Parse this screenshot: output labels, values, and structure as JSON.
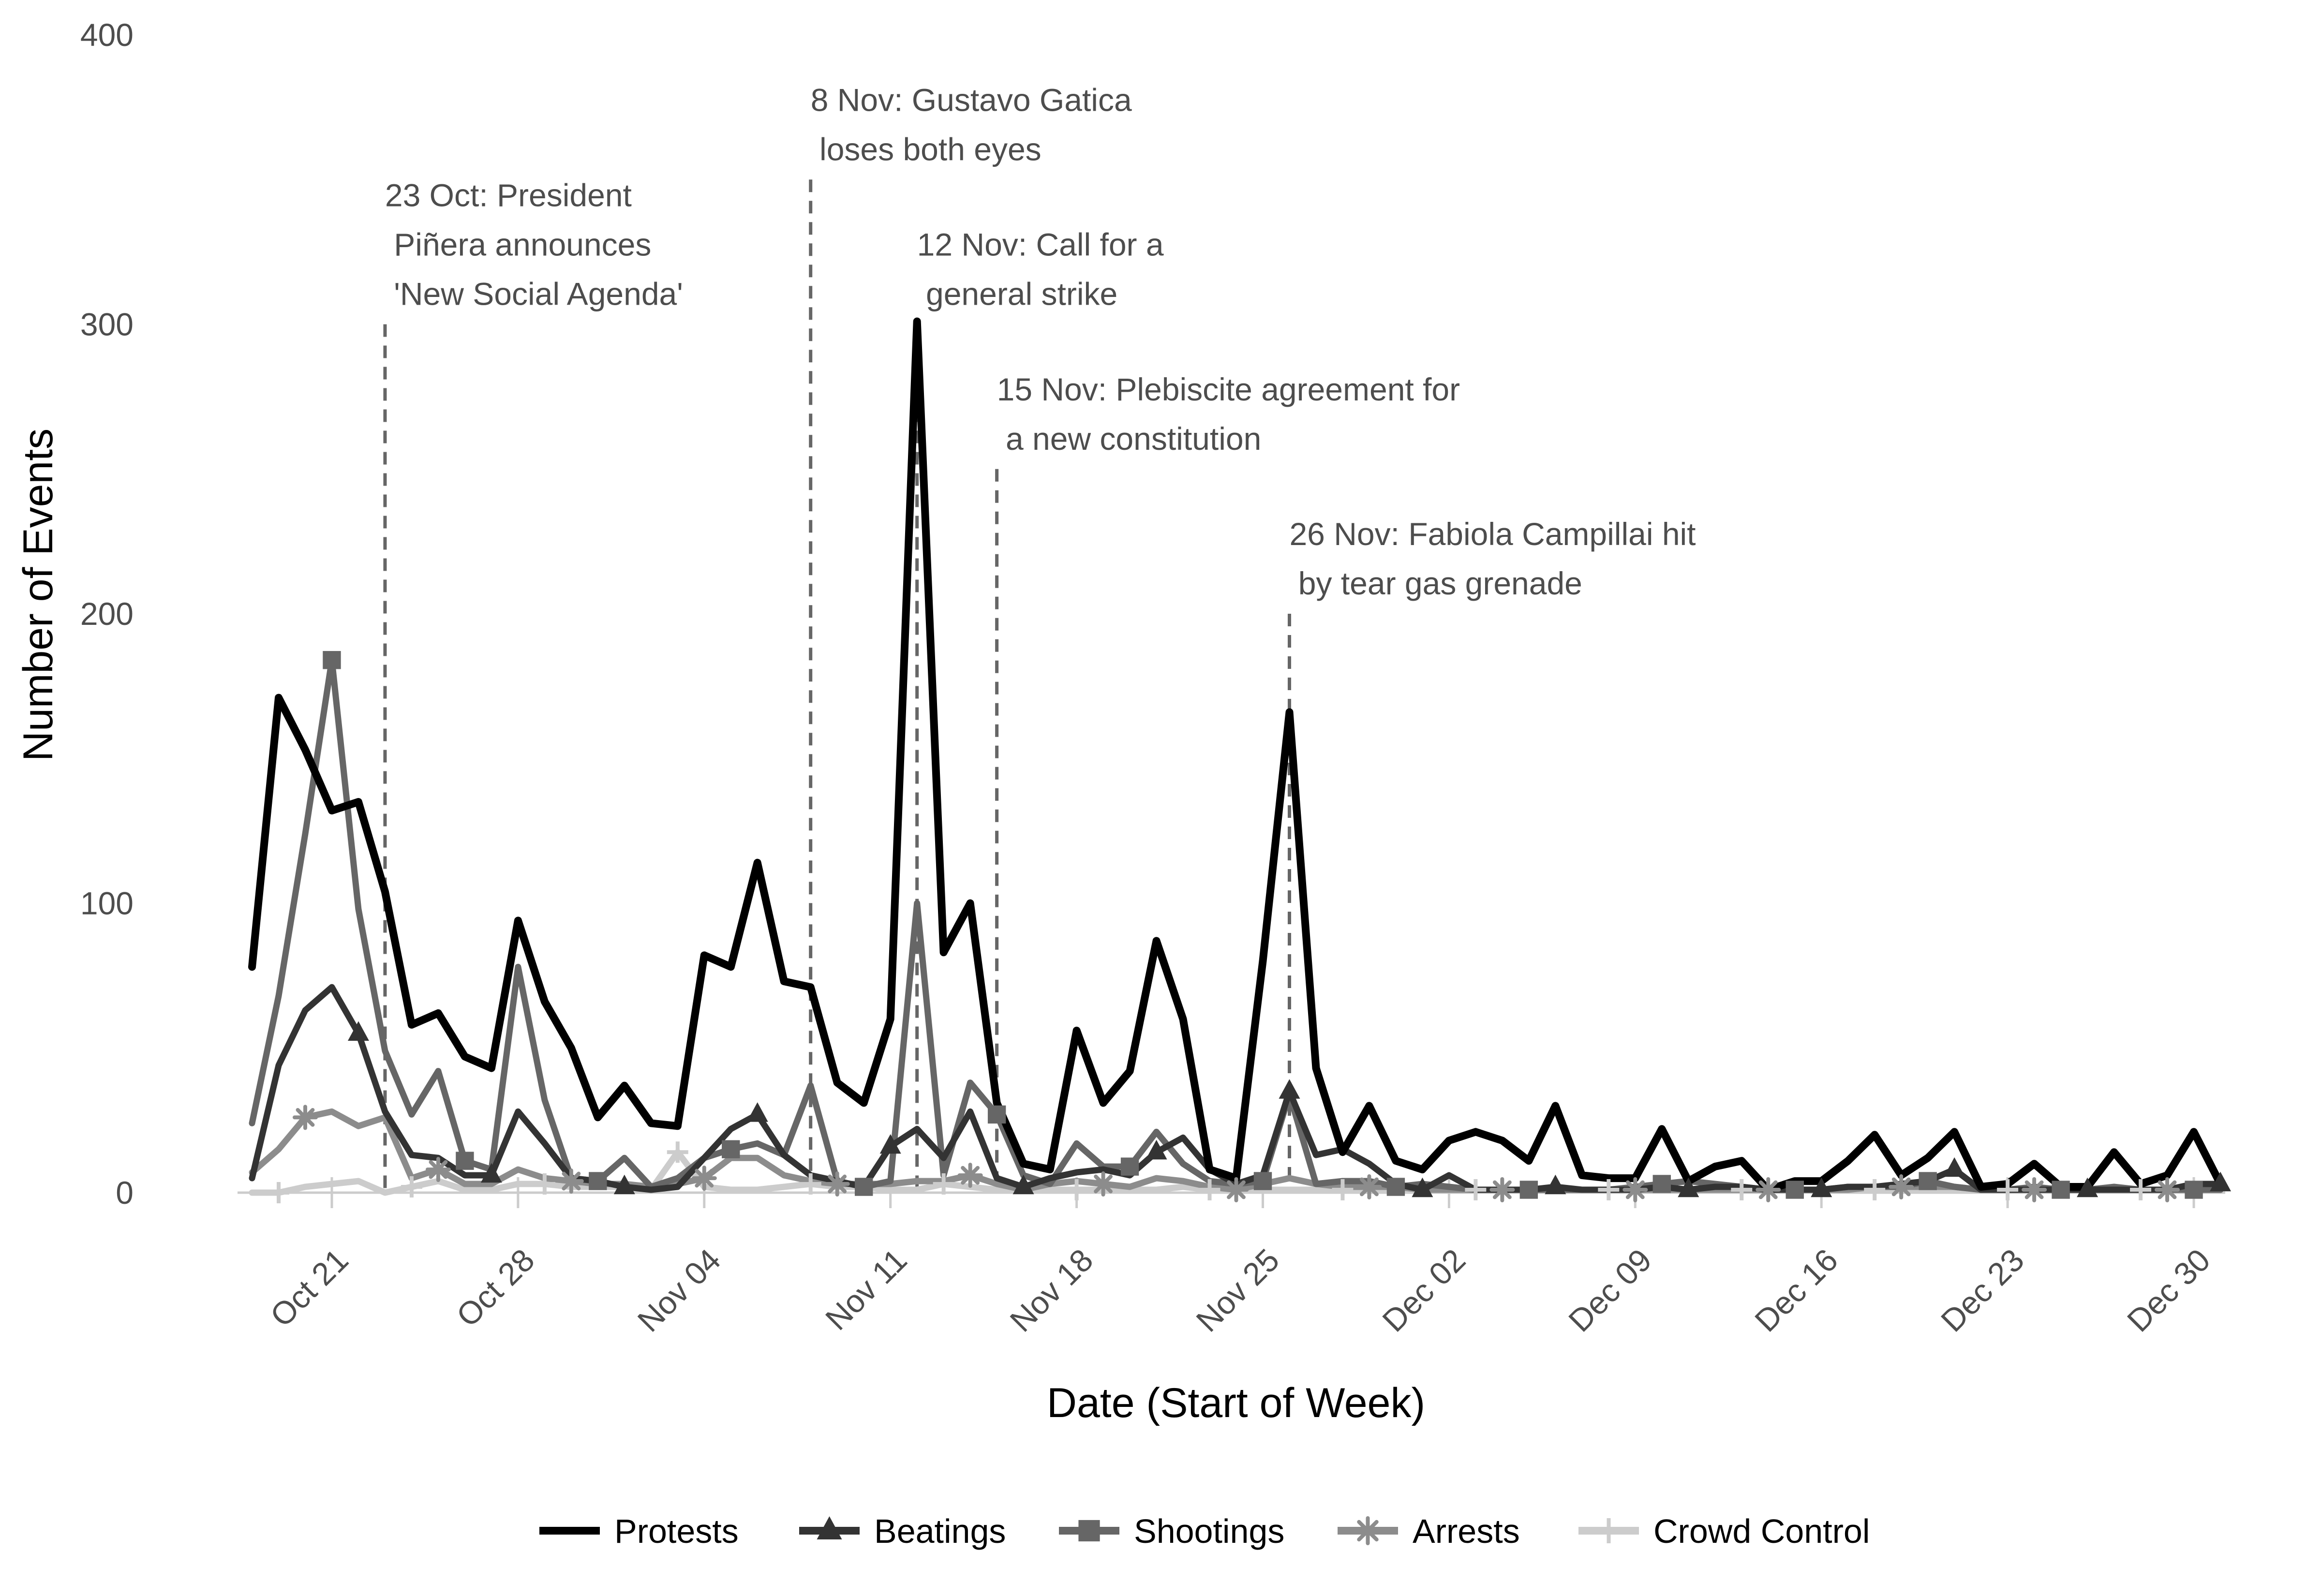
{
  "chart_data": {
    "type": "line",
    "xlabel": "Date (Start of Week)",
    "ylabel": "Number of Events",
    "x_start": "2019-10-18",
    "x_end": "2019-12-31",
    "ylim": [
      0,
      400
    ],
    "yticks": [
      0,
      100,
      200,
      300,
      400
    ],
    "xticks": [
      {
        "date": "2019-10-21",
        "label": "Oct 21"
      },
      {
        "date": "2019-10-28",
        "label": "Oct 28"
      },
      {
        "date": "2019-11-04",
        "label": "Nov 04"
      },
      {
        "date": "2019-11-11",
        "label": "Nov 11"
      },
      {
        "date": "2019-11-18",
        "label": "Nov 18"
      },
      {
        "date": "2019-11-25",
        "label": "Nov 25"
      },
      {
        "date": "2019-12-02",
        "label": "Dec 02"
      },
      {
        "date": "2019-12-09",
        "label": "Dec 09"
      },
      {
        "date": "2019-12-16",
        "label": "Dec 16"
      },
      {
        "date": "2019-12-23",
        "label": "Dec 23"
      },
      {
        "date": "2019-12-30",
        "label": "Dec 30"
      }
    ],
    "grid": false,
    "legend_position": "bottom",
    "annotations": [
      {
        "date": "2019-10-23",
        "top": 300,
        "lines": [
          "23 Oct: President",
          " Piñera announces",
          " 'New Social Agenda'"
        ]
      },
      {
        "date": "2019-11-08",
        "top": 350,
        "lines": [
          "8 Nov: Gustavo Gatica",
          " loses both eyes"
        ]
      },
      {
        "date": "2019-11-12",
        "top": 300,
        "lines": [
          "12 Nov: Call for a",
          " general strike"
        ]
      },
      {
        "date": "2019-11-15",
        "top": 250,
        "lines": [
          "15 Nov: Plebiscite agreement for",
          " a new constitution"
        ]
      },
      {
        "date": "2019-11-26",
        "top": 200,
        "lines": [
          "26 Nov: Fabiola Campillai hit",
          " by tear gas grenade"
        ]
      }
    ],
    "series": [
      {
        "name": "Protests",
        "color": "#000000",
        "marker": "none",
        "values": [
          78,
          171,
          153,
          132,
          135,
          104,
          58,
          62,
          47,
          43,
          94,
          66,
          50,
          26,
          37,
          24,
          23,
          82,
          78,
          114,
          73,
          71,
          38,
          31,
          60,
          301,
          83,
          100,
          31,
          10,
          8,
          56,
          31,
          42,
          87,
          60,
          8,
          5,
          80,
          166,
          43,
          14,
          30,
          11,
          8,
          18,
          21,
          18,
          11,
          30,
          6,
          5,
          5,
          22,
          4,
          9,
          11,
          1,
          4,
          4,
          11,
          20,
          6,
          12,
          21,
          2,
          3,
          10,
          2,
          2,
          14,
          3,
          6,
          21,
          3
        ]
      },
      {
        "name": "Beatings",
        "color": "#333333",
        "marker": "triangle",
        "values": [
          5,
          44,
          63,
          71,
          55,
          28,
          13,
          12,
          6,
          6,
          28,
          17,
          5,
          4,
          2,
          1,
          2,
          12,
          22,
          27,
          13,
          6,
          4,
          2,
          16,
          22,
          12,
          28,
          5,
          2,
          5,
          7,
          8,
          6,
          14,
          19,
          8,
          3,
          6,
          35,
          13,
          15,
          10,
          3,
          1,
          6,
          1,
          1,
          1,
          2,
          1,
          1,
          1,
          2,
          1,
          2,
          2,
          1,
          1,
          1,
          2,
          2,
          3,
          4,
          8,
          1,
          1,
          1,
          1,
          1,
          1,
          1,
          1,
          3,
          3
        ]
      },
      {
        "name": "Shootings",
        "color": "#666666",
        "marker": "square",
        "values": [
          24,
          68,
          124,
          184,
          98,
          49,
          27,
          42,
          11,
          8,
          78,
          32,
          5,
          4,
          12,
          2,
          5,
          12,
          15,
          17,
          13,
          37,
          4,
          2,
          4,
          100,
          6,
          38,
          27,
          6,
          3,
          17,
          9,
          9,
          21,
          10,
          4,
          3,
          4,
          34,
          3,
          4,
          4,
          2,
          3,
          2,
          1,
          1,
          1,
          1,
          1,
          1,
          2,
          3,
          4,
          3,
          2,
          1,
          1,
          1,
          2,
          2,
          2,
          4,
          2,
          1,
          1,
          2,
          1,
          1,
          2,
          1,
          1,
          1,
          1
        ]
      },
      {
        "name": "Arrests",
        "color": "#8c8c8c",
        "marker": "asterisk",
        "values": [
          7,
          15,
          26,
          28,
          23,
          26,
          5,
          8,
          3,
          3,
          8,
          5,
          4,
          3,
          3,
          2,
          3,
          5,
          12,
          12,
          6,
          4,
          3,
          3,
          3,
          4,
          4,
          6,
          3,
          1,
          3,
          4,
          3,
          2,
          5,
          4,
          2,
          1,
          3,
          5,
          3,
          2,
          2,
          2,
          1,
          1,
          1,
          1,
          1,
          1,
          1,
          1,
          1,
          1,
          1,
          1,
          1,
          1,
          1,
          1,
          1,
          2,
          2,
          2,
          2,
          1,
          1,
          1,
          1,
          1,
          1,
          1,
          1,
          1,
          1
        ]
      },
      {
        "name": "Crowd Control",
        "color": "#cccccc",
        "marker": "plus",
        "values": [
          0,
          0,
          2,
          3,
          4,
          0,
          2,
          4,
          1,
          1,
          3,
          3,
          2,
          2,
          2,
          1,
          14,
          2,
          1,
          1,
          2,
          3,
          2,
          2,
          1,
          1,
          3,
          2,
          1,
          1,
          1,
          1,
          1,
          1,
          1,
          2,
          1,
          1,
          1,
          1,
          1,
          1,
          1,
          1,
          1,
          1,
          1,
          1,
          1,
          1,
          1,
          1,
          1,
          1,
          1,
          1,
          1,
          1,
          1,
          1,
          1,
          1,
          1,
          1,
          1,
          1,
          1,
          1,
          1,
          1,
          1,
          1,
          1,
          1,
          1
        ]
      }
    ]
  }
}
